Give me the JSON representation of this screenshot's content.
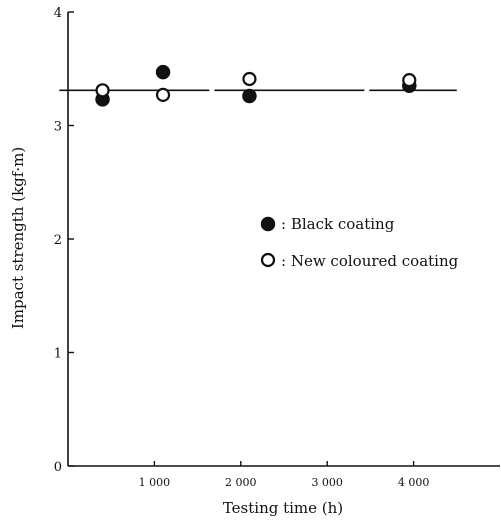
{
  "chart_data": {
    "type": "scatter",
    "title": "",
    "xlabel": "Testing time (h)",
    "ylabel": "Impact strength (kgf·m)",
    "xlim": [
      0,
      5000
    ],
    "ylim": [
      0,
      4
    ],
    "x_ticks": [
      {
        "value": 1000,
        "label": "1 000"
      },
      {
        "value": 2000,
        "label": "2 000"
      },
      {
        "value": 3000,
        "label": "3 000"
      },
      {
        "value": 4000,
        "label": "4 000"
      }
    ],
    "y_ticks": [
      {
        "value": 0,
        "label": "0"
      },
      {
        "value": 1,
        "label": "1"
      },
      {
        "value": 2,
        "label": "2"
      },
      {
        "value": 3,
        "label": "3"
      },
      {
        "value": 4,
        "label": "4"
      }
    ],
    "series": [
      {
        "name": "Black coating",
        "marker": "filled-circle",
        "x": [
          400,
          1100,
          2100,
          3950
        ],
        "y": [
          3.23,
          3.47,
          3.26,
          3.35
        ]
      },
      {
        "name": "New coloured coating",
        "marker": "open-circle",
        "x": [
          400,
          1100,
          2100,
          3950
        ],
        "y": [
          3.31,
          3.27,
          3.41,
          3.4
        ]
      }
    ],
    "reference_line": {
      "style": "long-dash",
      "y": 3.31,
      "x_start": -100,
      "x_end": 4500
    },
    "legend": {
      "placement": "center-right",
      "entries": [
        {
          "marker": "filled-circle",
          "label": ": Black coating"
        },
        {
          "marker": "open-circle",
          "label": ": New coloured coating"
        }
      ]
    },
    "grid": false,
    "colors": {
      "ink": "#111111",
      "background": "#ffffff"
    }
  }
}
